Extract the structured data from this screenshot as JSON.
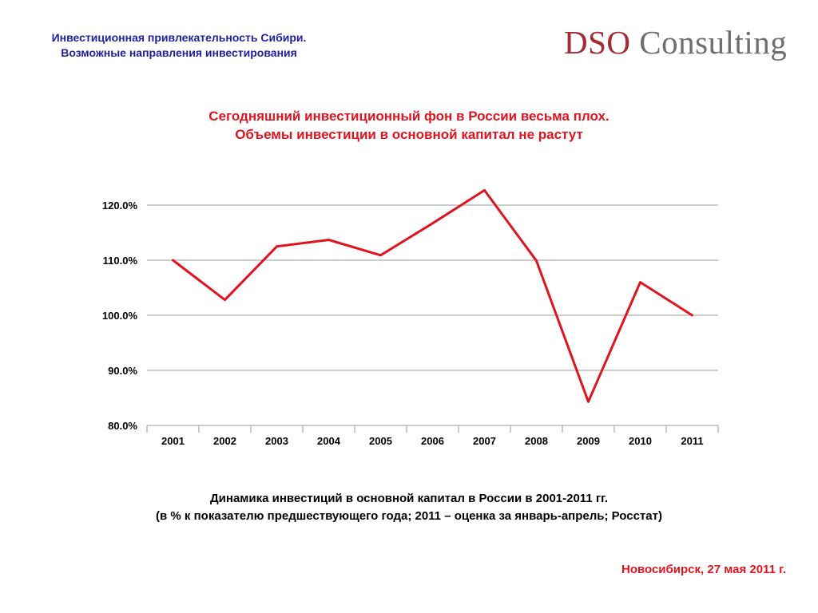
{
  "header": {
    "title_line1": "Инвестиционная привлекательность Сибири.",
    "title_line2": "Возможные направления инвестирования"
  },
  "logo": {
    "brand": "DSO",
    "suffix": "Consulting"
  },
  "headline": {
    "line1": "Сегодняшний инвестиционный фон в России весьма плох.",
    "line2": "Объемы инвестиции в основной капитал не растут"
  },
  "chart_data": {
    "type": "line",
    "categories": [
      "2001",
      "2002",
      "2003",
      "2004",
      "2005",
      "2006",
      "2007",
      "2008",
      "2009",
      "2010",
      "2011"
    ],
    "series": [
      {
        "values": [
          110.0,
          102.8,
          112.5,
          113.7,
          110.9,
          116.7,
          122.7,
          109.9,
          84.3,
          106.0,
          100.0
        ],
        "color": "#e0141e"
      }
    ],
    "ylim": [
      80,
      120
    ],
    "yticks": [
      80,
      90,
      100,
      110,
      120
    ],
    "ytick_labels": [
      "80.0%",
      "90.0%",
      "100.0%",
      "110.0%",
      "120.0%"
    ],
    "grid": true,
    "legend": "none"
  },
  "caption": {
    "line1": "Динамика инвестиций в основной капитал в России в 2001-2011 гг.",
    "line2": "(в % к показателю предшествующего года; 2011 – оценка за январь-апрель; Росстат)"
  },
  "footer": {
    "location_date": "Новосибирск, 27 мая 2011 г."
  }
}
